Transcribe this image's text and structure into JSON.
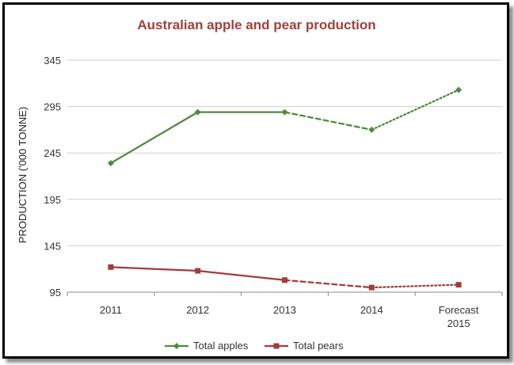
{
  "chart_data": {
    "type": "line",
    "title": "Australian apple and pear production",
    "xlabel": "",
    "ylabel": "PRODUCTION ('000  TONNE)",
    "categories": [
      "2011",
      "2012",
      "2013",
      "2014",
      "Forecast\n2015"
    ],
    "y_ticks": [
      95,
      145,
      195,
      245,
      295,
      345
    ],
    "ylim": [
      95,
      345
    ],
    "grid": true,
    "legend_position": "bottom",
    "series": [
      {
        "name": "Total apples",
        "values": [
          234,
          289,
          289,
          270,
          313
        ],
        "segment_styles": [
          "solid",
          "solid",
          "dashed",
          "dotted"
        ],
        "color": "#4e8a3c",
        "marker": "diamond"
      },
      {
        "name": "Total pears",
        "values": [
          122,
          118,
          108,
          100,
          103
        ],
        "segment_styles": [
          "solid",
          "solid",
          "dashed",
          "dotted"
        ],
        "color": "#a33b3b",
        "marker": "square"
      }
    ],
    "colors": {
      "title": "#a0403a",
      "grid": "#d0d0d0",
      "axis": "#888888"
    }
  }
}
